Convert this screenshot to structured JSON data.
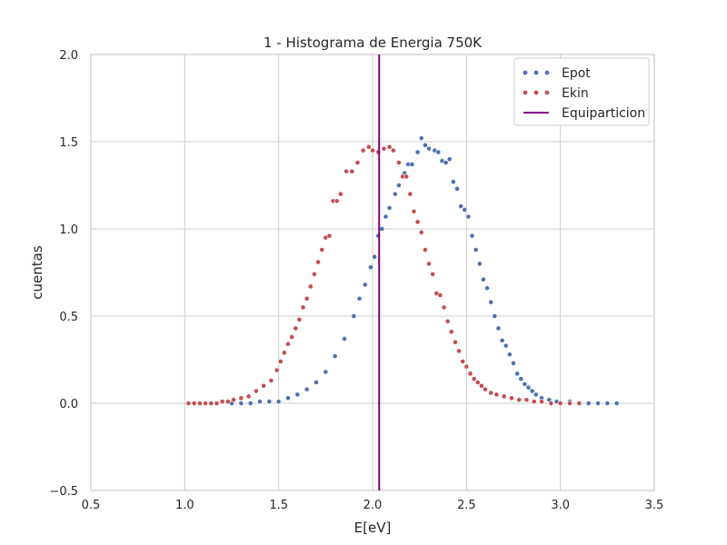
{
  "chart_data": {
    "type": "scatter",
    "title": "1 - Histograma de Energia 750K",
    "xlabel": "E[eV]",
    "ylabel": "cuentas",
    "xlim": [
      0.5,
      3.5
    ],
    "ylim": [
      -0.5,
      2.0
    ],
    "xticks": [
      0.5,
      1.0,
      1.5,
      2.0,
      2.5,
      3.0,
      3.5
    ],
    "yticks": [
      -0.5,
      0.0,
      0.5,
      1.0,
      1.5,
      2.0
    ],
    "xtick_labels": [
      "0.5",
      "1.0",
      "1.5",
      "2.0",
      "2.5",
      "3.0",
      "3.5"
    ],
    "ytick_labels": [
      "−0.5",
      "0.0",
      "0.5",
      "1.0",
      "1.5",
      "2.0"
    ],
    "grid": true,
    "legend_position": "top-right",
    "series": [
      {
        "name": "Epot",
        "color": "#4c72b0",
        "points": [
          [
            1.25,
            0.0
          ],
          [
            1.3,
            0.0
          ],
          [
            1.35,
            0.0
          ],
          [
            1.4,
            0.01
          ],
          [
            1.45,
            0.01
          ],
          [
            1.5,
            0.01
          ],
          [
            1.55,
            0.03
          ],
          [
            1.6,
            0.05
          ],
          [
            1.65,
            0.08
          ],
          [
            1.7,
            0.12
          ],
          [
            1.75,
            0.18
          ],
          [
            1.8,
            0.27
          ],
          [
            1.85,
            0.37
          ],
          [
            1.9,
            0.5
          ],
          [
            1.93,
            0.6
          ],
          [
            1.96,
            0.68
          ],
          [
            1.99,
            0.78
          ],
          [
            2.01,
            0.84
          ],
          [
            2.03,
            0.96
          ],
          [
            2.05,
            1.0
          ],
          [
            2.07,
            1.07
          ],
          [
            2.09,
            1.12
          ],
          [
            2.12,
            1.2
          ],
          [
            2.14,
            1.25
          ],
          [
            2.17,
            1.32
          ],
          [
            2.19,
            1.37
          ],
          [
            2.21,
            1.37
          ],
          [
            2.24,
            1.44
          ],
          [
            2.26,
            1.52
          ],
          [
            2.28,
            1.48
          ],
          [
            2.3,
            1.46
          ],
          [
            2.33,
            1.45
          ],
          [
            2.35,
            1.44
          ],
          [
            2.37,
            1.39
          ],
          [
            2.39,
            1.38
          ],
          [
            2.41,
            1.4
          ],
          [
            2.43,
            1.27
          ],
          [
            2.45,
            1.23
          ],
          [
            2.47,
            1.13
          ],
          [
            2.49,
            1.11
          ],
          [
            2.51,
            1.07
          ],
          [
            2.53,
            0.96
          ],
          [
            2.55,
            0.88
          ],
          [
            2.57,
            0.8
          ],
          [
            2.59,
            0.71
          ],
          [
            2.61,
            0.66
          ],
          [
            2.63,
            0.58
          ],
          [
            2.65,
            0.5
          ],
          [
            2.67,
            0.43
          ],
          [
            2.69,
            0.36
          ],
          [
            2.71,
            0.33
          ],
          [
            2.73,
            0.28
          ],
          [
            2.75,
            0.23
          ],
          [
            2.77,
            0.17
          ],
          [
            2.79,
            0.14
          ],
          [
            2.81,
            0.11
          ],
          [
            2.83,
            0.09
          ],
          [
            2.85,
            0.07
          ],
          [
            2.87,
            0.05
          ],
          [
            2.9,
            0.03
          ],
          [
            2.94,
            0.02
          ],
          [
            2.98,
            0.01
          ],
          [
            3.05,
            0.01
          ],
          [
            3.1,
            0.0
          ],
          [
            3.15,
            0.0
          ],
          [
            3.2,
            0.0
          ],
          [
            3.25,
            0.0
          ],
          [
            3.3,
            0.0
          ]
        ]
      },
      {
        "name": "Ekin",
        "color": "#c44e52",
        "points": [
          [
            1.02,
            0.0
          ],
          [
            1.05,
            0.0
          ],
          [
            1.08,
            0.0
          ],
          [
            1.11,
            0.0
          ],
          [
            1.14,
            0.0
          ],
          [
            1.17,
            0.0
          ],
          [
            1.2,
            0.01
          ],
          [
            1.23,
            0.01
          ],
          [
            1.26,
            0.02
          ],
          [
            1.3,
            0.03
          ],
          [
            1.34,
            0.04
          ],
          [
            1.38,
            0.07
          ],
          [
            1.42,
            0.1
          ],
          [
            1.46,
            0.13
          ],
          [
            1.49,
            0.19
          ],
          [
            1.51,
            0.24
          ],
          [
            1.53,
            0.29
          ],
          [
            1.55,
            0.34
          ],
          [
            1.57,
            0.38
          ],
          [
            1.59,
            0.43
          ],
          [
            1.61,
            0.48
          ],
          [
            1.63,
            0.55
          ],
          [
            1.65,
            0.6
          ],
          [
            1.67,
            0.67
          ],
          [
            1.69,
            0.74
          ],
          [
            1.71,
            0.81
          ],
          [
            1.73,
            0.88
          ],
          [
            1.75,
            0.95
          ],
          [
            1.77,
            0.96
          ],
          [
            1.79,
            1.16
          ],
          [
            1.81,
            1.16
          ],
          [
            1.83,
            1.2
          ],
          [
            1.86,
            1.33
          ],
          [
            1.89,
            1.33
          ],
          [
            1.92,
            1.38
          ],
          [
            1.95,
            1.45
          ],
          [
            1.98,
            1.47
          ],
          [
            2.0,
            1.45
          ],
          [
            2.03,
            1.44
          ],
          [
            2.06,
            1.46
          ],
          [
            2.09,
            1.47
          ],
          [
            2.11,
            1.45
          ],
          [
            2.14,
            1.38
          ],
          [
            2.16,
            1.3
          ],
          [
            2.18,
            1.3
          ],
          [
            2.2,
            1.2
          ],
          [
            2.22,
            1.1
          ],
          [
            2.24,
            1.04
          ],
          [
            2.26,
            0.98
          ],
          [
            2.28,
            0.88
          ],
          [
            2.3,
            0.8
          ],
          [
            2.32,
            0.74
          ],
          [
            2.34,
            0.63
          ],
          [
            2.36,
            0.62
          ],
          [
            2.38,
            0.55
          ],
          [
            2.4,
            0.47
          ],
          [
            2.42,
            0.41
          ],
          [
            2.44,
            0.35
          ],
          [
            2.46,
            0.3
          ],
          [
            2.48,
            0.24
          ],
          [
            2.5,
            0.21
          ],
          [
            2.52,
            0.17
          ],
          [
            2.54,
            0.14
          ],
          [
            2.56,
            0.12
          ],
          [
            2.58,
            0.1
          ],
          [
            2.6,
            0.08
          ],
          [
            2.63,
            0.06
          ],
          [
            2.66,
            0.05
          ],
          [
            2.7,
            0.04
          ],
          [
            2.74,
            0.03
          ],
          [
            2.78,
            0.02
          ],
          [
            2.82,
            0.02
          ],
          [
            2.86,
            0.01
          ],
          [
            2.9,
            0.01
          ],
          [
            2.95,
            0.0
          ],
          [
            3.0,
            0.0
          ],
          [
            3.05,
            0.0
          ],
          [
            3.1,
            0.0
          ]
        ]
      }
    ],
    "vline": {
      "name": "Equiparticion",
      "x": 2.035,
      "color": "#800080"
    }
  }
}
